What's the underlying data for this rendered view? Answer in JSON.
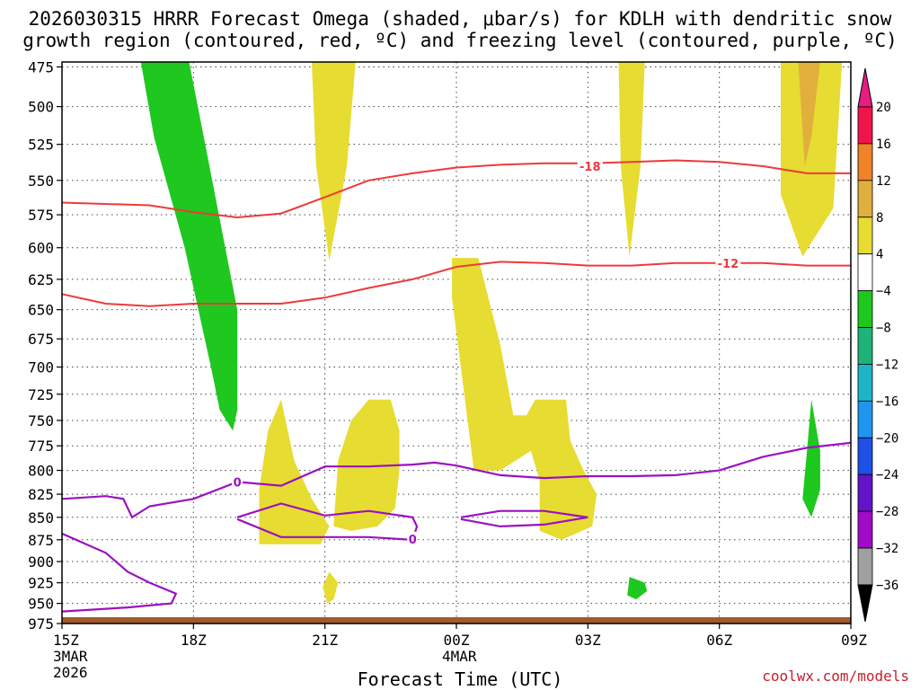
{
  "title": {
    "line1": "2026030315 HRRR Forecast Omega (shaded, μbar/s) for KDLH with dendritic snow",
    "line2": "growth region (contoured, red, ºC) and freezing level (contoured, purple, ºC)"
  },
  "credit": "coolwx.com/models",
  "chart_data": {
    "type": "heatmap",
    "title": "2026030315 HRRR Forecast Omega (shaded, μbar/s) for KDLH with dendritic snow growth region (contoured, red, ºC) and freezing level (contoured, purple, ºC)",
    "xlabel": "Forecast Time (UTC)",
    "ylabel": "",
    "x_ticks": [
      {
        "hour": 0,
        "label": "15Z",
        "sub1": "3MAR",
        "sub2": "2026"
      },
      {
        "hour": 3,
        "label": "18Z"
      },
      {
        "hour": 6,
        "label": "21Z"
      },
      {
        "hour": 9,
        "label": "00Z",
        "sub1": "4MAR"
      },
      {
        "hour": 12,
        "label": "03Z"
      },
      {
        "hour": 15,
        "label": "06Z"
      },
      {
        "hour": 18,
        "label": "09Z"
      }
    ],
    "xlim": [
      0,
      18
    ],
    "y_ticks": [
      475,
      500,
      525,
      550,
      575,
      600,
      625,
      650,
      675,
      700,
      725,
      750,
      775,
      800,
      825,
      850,
      875,
      900,
      925,
      950,
      975
    ],
    "ylim": [
      975,
      472
    ],
    "y_scale": "log-pressure",
    "grid": true,
    "colorbar": {
      "labels": [
        "20",
        "16",
        "12",
        "8",
        "4",
        "−4",
        "−8",
        "−12",
        "−16",
        "−20",
        "−24",
        "−28",
        "−32",
        "−36"
      ],
      "colors": [
        "#f0144b",
        "#f08228",
        "#e1af3c",
        "#e6dc32",
        "#ffffff",
        "#1ec81e",
        "#1eb478",
        "#1eb4c8",
        "#1e96f0",
        "#1e50e6",
        "#6414c8",
        "#a00ac8",
        "#a0a0a0"
      ],
      "top_arrow": "#e61e82",
      "bottom_arrow": "#000000"
    },
    "omega_regions": [
      {
        "color": "#e6dc32",
        "points": [
          [
            5.7,
            472
          ],
          [
            6.7,
            472
          ],
          [
            6.5,
            540
          ],
          [
            6.1,
            610
          ],
          [
            5.8,
            540
          ]
        ]
      },
      {
        "color": "#e6dc32",
        "points": [
          [
            12.7,
            472
          ],
          [
            13.3,
            472
          ],
          [
            13.2,
            540
          ],
          [
            12.95,
            607
          ],
          [
            12.75,
            540
          ]
        ]
      },
      {
        "color": "#e6dc32",
        "points": [
          [
            16.4,
            472
          ],
          [
            17.8,
            472
          ],
          [
            17.6,
            570
          ],
          [
            16.9,
            607
          ],
          [
            16.4,
            560
          ]
        ]
      },
      {
        "color": "#e1af3c",
        "points": [
          [
            16.8,
            472
          ],
          [
            17.3,
            472
          ],
          [
            17.1,
            520
          ],
          [
            16.95,
            540
          ]
        ]
      },
      {
        "color": "#e6dc32",
        "points": [
          [
            8.9,
            608
          ],
          [
            9.5,
            608
          ],
          [
            10,
            680
          ],
          [
            10.3,
            745
          ],
          [
            10.6,
            745
          ],
          [
            10.8,
            730
          ],
          [
            11.5,
            730
          ],
          [
            11.6,
            770
          ],
          [
            11.9,
            800
          ],
          [
            12.2,
            825
          ],
          [
            12.1,
            860
          ],
          [
            11.4,
            875
          ],
          [
            10.9,
            865
          ],
          [
            10.9,
            810
          ],
          [
            10.7,
            780
          ],
          [
            10,
            800
          ],
          [
            9.4,
            800
          ],
          [
            9.1,
            700
          ],
          [
            8.9,
            640
          ]
        ]
      },
      {
        "color": "#e6dc32",
        "points": [
          [
            5.0,
            730
          ],
          [
            5.3,
            790
          ],
          [
            5.7,
            830
          ],
          [
            6.1,
            860
          ],
          [
            5.9,
            880
          ],
          [
            4.5,
            880
          ],
          [
            4.5,
            820
          ],
          [
            4.7,
            760
          ]
        ]
      },
      {
        "color": "#e6dc32",
        "points": [
          [
            7.0,
            730
          ],
          [
            7.5,
            730
          ],
          [
            7.7,
            760
          ],
          [
            7.7,
            800
          ],
          [
            7.6,
            840
          ],
          [
            7.2,
            860
          ],
          [
            6.6,
            865
          ],
          [
            6.2,
            860
          ],
          [
            6.3,
            790
          ],
          [
            6.6,
            750
          ]
        ]
      },
      {
        "color": "#e6dc32",
        "points": [
          [
            6.1,
            912
          ],
          [
            6.3,
            925
          ],
          [
            6.2,
            945
          ],
          [
            6.05,
            950
          ],
          [
            5.95,
            930
          ]
        ]
      },
      {
        "color": "#1ec81e",
        "points": [
          [
            1.8,
            472
          ],
          [
            2.9,
            472
          ],
          [
            3.3,
            530
          ],
          [
            4.0,
            650
          ],
          [
            4.0,
            740
          ],
          [
            3.9,
            760
          ],
          [
            3.6,
            740
          ],
          [
            3.4,
            700
          ],
          [
            2.8,
            600
          ],
          [
            2.1,
            520
          ]
        ]
      },
      {
        "color": "#1ec81e",
        "points": [
          [
            17.1,
            730
          ],
          [
            17.3,
            780
          ],
          [
            17.3,
            820
          ],
          [
            17.1,
            850
          ],
          [
            16.9,
            830
          ],
          [
            17.0,
            780
          ]
        ]
      },
      {
        "color": "#1ec81e",
        "points": [
          [
            12.95,
            918
          ],
          [
            13.3,
            925
          ],
          [
            13.35,
            935
          ],
          [
            13.1,
            945
          ],
          [
            12.9,
            940
          ]
        ]
      }
    ],
    "dendritic_contours": [
      {
        "label": "-18",
        "label_hour": 12.05,
        "label_p": 540,
        "points": [
          [
            0,
            566
          ],
          [
            2,
            568
          ],
          [
            3,
            573
          ],
          [
            4,
            577
          ],
          [
            5,
            574
          ],
          [
            6,
            562
          ],
          [
            7,
            550
          ],
          [
            8,
            545
          ],
          [
            9,
            541
          ],
          [
            10,
            539
          ],
          [
            11,
            538
          ],
          [
            12,
            538
          ],
          [
            13,
            537
          ],
          [
            14,
            536
          ],
          [
            15,
            537
          ],
          [
            16,
            540
          ],
          [
            17,
            545
          ],
          [
            18,
            545
          ]
        ]
      },
      {
        "label": "-12",
        "label_hour": 15.2,
        "label_p": 612,
        "points": [
          [
            0,
            637
          ],
          [
            1,
            645
          ],
          [
            2,
            647
          ],
          [
            3,
            645
          ],
          [
            4,
            645
          ],
          [
            5,
            645
          ],
          [
            6,
            640
          ],
          [
            7,
            632
          ],
          [
            8,
            625
          ],
          [
            9,
            615
          ],
          [
            10,
            611
          ],
          [
            11,
            612
          ],
          [
            12,
            614
          ],
          [
            13,
            614
          ],
          [
            14,
            612
          ],
          [
            15,
            612
          ],
          [
            16,
            612
          ],
          [
            17,
            614
          ],
          [
            18,
            614
          ]
        ]
      }
    ],
    "freezing_level_contours": [
      {
        "label": "0",
        "label_hour": 4.0,
        "label_p": 812,
        "points": [
          [
            0,
            830
          ],
          [
            1,
            827
          ],
          [
            1.4,
            830
          ],
          [
            1.6,
            850
          ],
          [
            2,
            838
          ],
          [
            3,
            830
          ],
          [
            4,
            812
          ],
          [
            5,
            816
          ],
          [
            6,
            796
          ],
          [
            7,
            796
          ],
          [
            8,
            794
          ],
          [
            8.5,
            792
          ],
          [
            9,
            795
          ],
          [
            10,
            805
          ],
          [
            11,
            808
          ],
          [
            12,
            806
          ],
          [
            13,
            806
          ],
          [
            14,
            805
          ],
          [
            15,
            800
          ],
          [
            16,
            786
          ],
          [
            17,
            777
          ],
          [
            18,
            772
          ]
        ]
      },
      {
        "label": "0",
        "label_hour": 8.0,
        "label_p": 874,
        "points": [
          [
            4,
            850
          ],
          [
            5,
            835
          ],
          [
            6,
            848
          ],
          [
            7,
            843
          ],
          [
            8,
            850
          ],
          [
            8.1,
            860
          ],
          [
            8.0,
            875
          ],
          [
            7,
            872
          ],
          [
            6,
            872
          ],
          [
            5,
            872
          ],
          [
            4,
            852
          ]
        ]
      },
      {
        "label": "",
        "points": [
          [
            9.1,
            850
          ],
          [
            10,
            843
          ],
          [
            11,
            843
          ],
          [
            12,
            850
          ],
          [
            11,
            858
          ],
          [
            10,
            860
          ],
          [
            9.1,
            852
          ]
        ]
      },
      {
        "label": "",
        "points": [
          [
            0,
            868
          ],
          [
            1,
            890
          ],
          [
            1.5,
            912
          ],
          [
            2,
            925
          ],
          [
            2.6,
            938
          ],
          [
            2.5,
            950
          ],
          [
            1.5,
            955
          ],
          [
            0,
            960
          ]
        ]
      }
    ]
  }
}
